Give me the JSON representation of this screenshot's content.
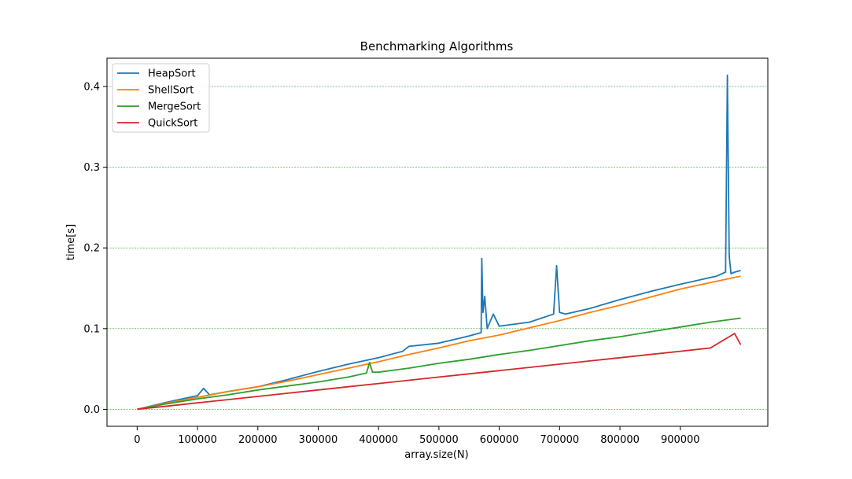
{
  "chart_data": {
    "type": "line",
    "title": "Benchmarking Algorithms",
    "xlabel": "array.size(N)",
    "ylabel": "time[s]",
    "xlim": [
      -50000,
      1045000
    ],
    "ylim": [
      -0.021,
      0.435
    ],
    "xticks": [
      0,
      100000,
      200000,
      300000,
      400000,
      500000,
      600000,
      700000,
      800000,
      900000
    ],
    "xtick_labels": [
      "0",
      "100000",
      "200000",
      "300000",
      "400000",
      "500000",
      "600000",
      "700000",
      "800000",
      "900000"
    ],
    "yticks": [
      0.0,
      0.1,
      0.2,
      0.3,
      0.4
    ],
    "ytick_labels": [
      "0.0",
      "0.1",
      "0.2",
      "0.3",
      "0.4"
    ],
    "grid": "horizontal dashed green",
    "legend": "top-left",
    "series": [
      {
        "name": "HeapSort",
        "color": "#1f77b4",
        "x": [
          0,
          50000,
          100000,
          110000,
          120000,
          150000,
          200000,
          250000,
          300000,
          350000,
          400000,
          440000,
          450000,
          500000,
          550000,
          570000,
          571000,
          573000,
          576000,
          580000,
          590000,
          600000,
          650000,
          690000,
          695000,
          700000,
          710000,
          750000,
          800000,
          850000,
          900000,
          960000,
          975000,
          978000,
          981000,
          984000,
          990000,
          1000000
        ],
        "y": [
          0,
          0.009,
          0.017,
          0.026,
          0.018,
          0.022,
          0.028,
          0.037,
          0.047,
          0.056,
          0.064,
          0.072,
          0.078,
          0.082,
          0.091,
          0.095,
          0.187,
          0.12,
          0.14,
          0.1,
          0.118,
          0.103,
          0.108,
          0.118,
          0.178,
          0.12,
          0.118,
          0.125,
          0.136,
          0.146,
          0.155,
          0.165,
          0.17,
          0.414,
          0.19,
          0.168,
          0.17,
          0.172
        ]
      },
      {
        "name": "ShellSort",
        "color": "#ff7f0e",
        "x": [
          0,
          50000,
          100000,
          150000,
          200000,
          250000,
          300000,
          350000,
          400000,
          450000,
          500000,
          550000,
          600000,
          650000,
          700000,
          750000,
          800000,
          850000,
          900000,
          950000,
          1000000
        ],
        "y": [
          0,
          0.008,
          0.015,
          0.022,
          0.028,
          0.035,
          0.043,
          0.051,
          0.059,
          0.068,
          0.076,
          0.085,
          0.092,
          0.101,
          0.11,
          0.12,
          0.129,
          0.139,
          0.149,
          0.157,
          0.165
        ]
      },
      {
        "name": "MergeSort",
        "color": "#2ca02c",
        "x": [
          0,
          50000,
          100000,
          150000,
          200000,
          250000,
          300000,
          350000,
          380000,
          385000,
          390000,
          400000,
          450000,
          500000,
          550000,
          600000,
          650000,
          700000,
          750000,
          800000,
          850000,
          900000,
          950000,
          1000000
        ],
        "y": [
          0,
          0.007,
          0.013,
          0.018,
          0.024,
          0.029,
          0.034,
          0.04,
          0.045,
          0.058,
          0.046,
          0.046,
          0.051,
          0.057,
          0.062,
          0.068,
          0.073,
          0.079,
          0.085,
          0.09,
          0.096,
          0.102,
          0.108,
          0.113
        ]
      },
      {
        "name": "QuickSort",
        "color": "#d62728",
        "x": [
          0,
          50000,
          100000,
          150000,
          200000,
          250000,
          300000,
          350000,
          400000,
          450000,
          500000,
          550000,
          600000,
          650000,
          700000,
          750000,
          800000,
          850000,
          900000,
          950000,
          990000,
          1000000
        ],
        "y": [
          0,
          0.004,
          0.008,
          0.012,
          0.016,
          0.02,
          0.024,
          0.028,
          0.032,
          0.036,
          0.04,
          0.044,
          0.048,
          0.052,
          0.056,
          0.06,
          0.064,
          0.068,
          0.072,
          0.076,
          0.094,
          0.08
        ]
      }
    ]
  }
}
